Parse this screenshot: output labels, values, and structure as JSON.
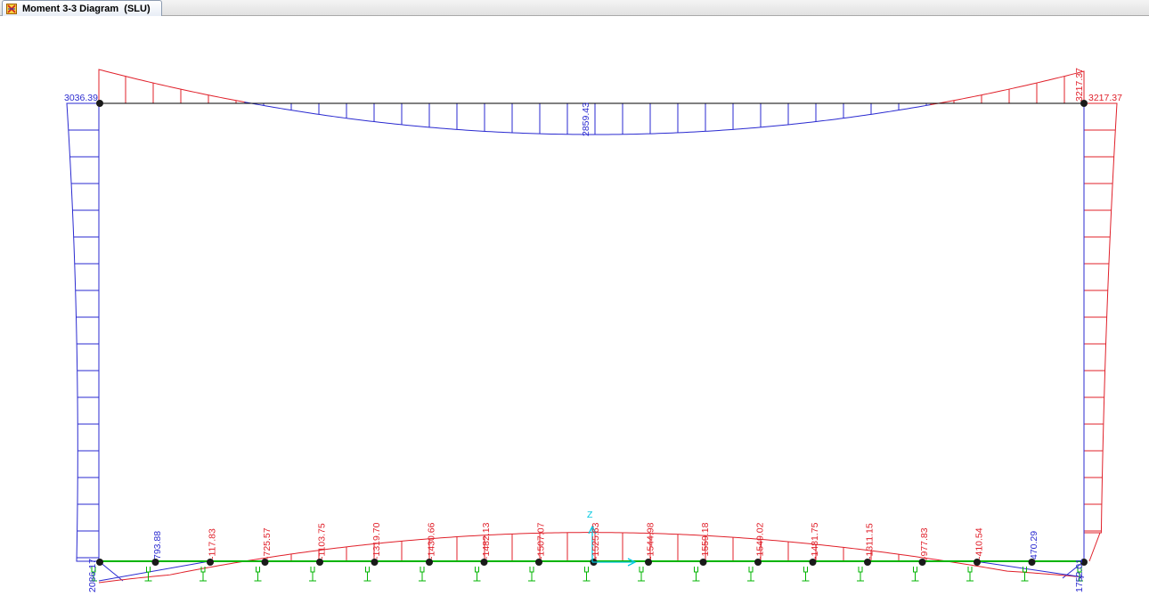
{
  "tab": {
    "label": "Moment 3-3 Diagram  (SLU)",
    "icon": "frame-diagram-icon"
  },
  "colors": {
    "positive": "#e0202a",
    "negative": "#2a2ad0",
    "member": "#000000",
    "springs": "#00b400",
    "axes": "#00c8e0",
    "node": "#1a1a1a"
  },
  "axes": {
    "z_label": "Z"
  },
  "diagram": {
    "top_beam": {
      "left_value": "3036.39",
      "mid_value": "2859.43",
      "right_value": "3217.37"
    },
    "right_column": {
      "top_value": "3217.37",
      "bottom_value": "1752.01"
    },
    "left_column": {
      "bottom_value": "2086.17"
    },
    "bottom_beam_values": [
      "793.88",
      "-117.83",
      "-725.57",
      "-1103.75",
      "-1319.70",
      "-1430.66",
      "-1482.13",
      "-1507.07",
      "-1525.63",
      "-1544.98",
      "-1559.18",
      "-1549.02",
      "-1481.75",
      "-1311.15",
      "-977.83",
      "-410.54",
      "470.29"
    ]
  }
}
